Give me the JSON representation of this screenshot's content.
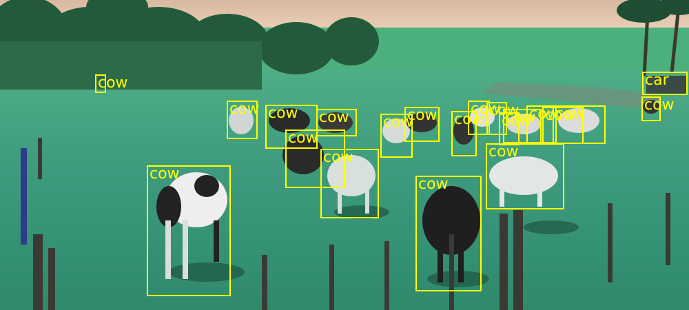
{
  "scene": {
    "description_icon": "pasture-with-cattle-photo",
    "sky_color": "#e8c8a8",
    "grass_color": "#3e9b7e",
    "box_color": "#ffff00"
  },
  "detections": [
    {
      "label": "cow"
    },
    {
      "label": "car"
    },
    {
      "label": "cow"
    },
    {
      "label": "cow"
    },
    {
      "label": "cow"
    },
    {
      "label": "cow"
    },
    {
      "label": "cow"
    },
    {
      "label": "cow"
    },
    {
      "label": "cow"
    },
    {
      "label": "cow"
    },
    {
      "label": "cow"
    },
    {
      "label": "cow"
    },
    {
      "label": "cow"
    },
    {
      "label": "cow"
    },
    {
      "label": "cow"
    },
    {
      "label": "cow"
    },
    {
      "label": "cow"
    },
    {
      "label": "cow"
    },
    {
      "label": "cow"
    },
    {
      "label": "cow"
    }
  ]
}
